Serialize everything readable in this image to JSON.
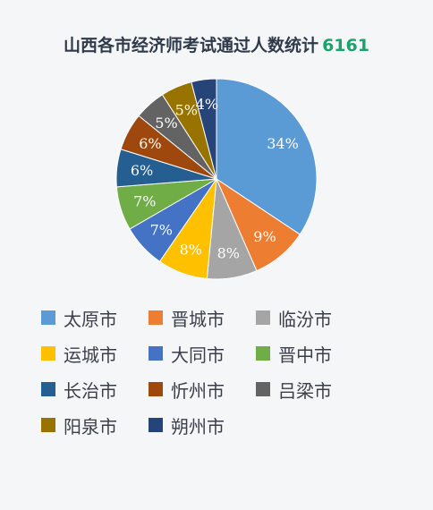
{
  "header": {
    "title": "山西各市经济师考试通过人数统计",
    "total": "6161"
  },
  "chart_data": {
    "type": "pie",
    "title": "山西各市经济师考试通过人数统计 6161",
    "categories": [
      "太原市",
      "晋城市",
      "临汾市",
      "运城市",
      "大同市",
      "晋中市",
      "长治市",
      "忻州市",
      "吕梁市",
      "阳泉市",
      "朔州市"
    ],
    "values": [
      34,
      9,
      8,
      8,
      7,
      7,
      6,
      6,
      5,
      5,
      4
    ],
    "labels": [
      "34%",
      "9%",
      "8%",
      "8%",
      "7%",
      "7%",
      "6%",
      "6%",
      "5%",
      "5%",
      "4%"
    ],
    "unit": "%",
    "colors": [
      "#5b9bd5",
      "#ed7d31",
      "#a5a5a5",
      "#ffc000",
      "#4472c4",
      "#70ad47",
      "#255e91",
      "#9e480e",
      "#636363",
      "#997300",
      "#264478"
    ],
    "legend": "bottom",
    "start": "12 o'clock",
    "direction": "clockwise"
  }
}
